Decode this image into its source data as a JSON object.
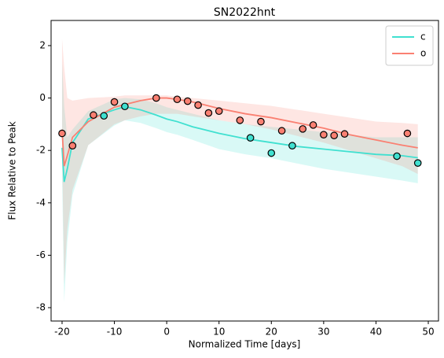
{
  "chart_data": {
    "type": "line",
    "title": "SN2022hnt",
    "xlabel": "Normalized Time [days]",
    "ylabel": "Flux Relative to Peak",
    "xlim": [
      -22.1,
      51.95
    ],
    "ylim": [
      -8.51,
      2.96
    ],
    "xticks": [
      -20,
      -10,
      0,
      10,
      20,
      30,
      40,
      50
    ],
    "yticks": [
      -8,
      -6,
      -4,
      -2,
      0,
      2
    ],
    "legend": "upper right",
    "series": [
      {
        "name": "c",
        "color": "#40e0d0",
        "x": [
          -20,
          -19.6,
          -19,
          -18,
          -15,
          -10,
          -8,
          -5,
          -2,
          0,
          2,
          5,
          10,
          15,
          20,
          25,
          30,
          35,
          40,
          45,
          48
        ],
        "values": [
          -1.9,
          -3.2,
          -2.7,
          -1.7,
          -0.8,
          -0.45,
          -0.33,
          -0.45,
          -0.65,
          -0.8,
          -0.9,
          -1.1,
          -1.35,
          -1.55,
          -1.7,
          -1.85,
          -1.95,
          -2.05,
          -2.15,
          -2.2,
          -2.28
        ],
        "upper": [
          1.4,
          -0.3,
          -1.5,
          -1.2,
          -0.5,
          -0.05,
          0.0,
          -0.05,
          -0.2,
          -0.35,
          -0.45,
          -0.6,
          -0.85,
          -1.0,
          -1.1,
          -1.2,
          -1.3,
          -1.4,
          -1.5,
          -1.5,
          -1.5
        ],
        "lower": [
          -3.0,
          -7.8,
          -5.5,
          -3.7,
          -1.8,
          -1.05,
          -0.85,
          -0.95,
          -1.15,
          -1.3,
          -1.4,
          -1.6,
          -1.95,
          -2.15,
          -2.3,
          -2.5,
          -2.7,
          -2.85,
          -3.0,
          -3.15,
          -3.25
        ],
        "obs_x": [
          -12,
          -8,
          16,
          20,
          24,
          44,
          48
        ],
        "obs_values": [
          -0.68,
          -0.32,
          -1.52,
          -2.1,
          -1.82,
          -2.22,
          -2.48
        ]
      },
      {
        "name": "o",
        "color": "#fa8072",
        "x": [
          -20,
          -19.6,
          -19,
          -18,
          -15,
          -10,
          -8,
          -5,
          -2,
          0,
          2,
          5,
          10,
          15,
          20,
          25,
          30,
          35,
          40,
          45,
          48
        ],
        "values": [
          -1.2,
          -2.6,
          -2.2,
          -1.5,
          -0.9,
          -0.35,
          -0.25,
          -0.1,
          0.0,
          0.0,
          -0.05,
          -0.15,
          -0.4,
          -0.6,
          -0.75,
          -0.95,
          -1.15,
          -1.4,
          -1.6,
          -1.8,
          -1.9
        ],
        "upper": [
          2.25,
          1.2,
          0.0,
          -0.1,
          0.0,
          0.05,
          0.1,
          0.1,
          0.1,
          0.1,
          0.05,
          0.0,
          -0.1,
          -0.2,
          -0.3,
          -0.45,
          -0.6,
          -0.75,
          -0.9,
          -0.95,
          -1.0
        ],
        "lower": [
          -2.0,
          -7.1,
          -5.0,
          -3.5,
          -1.8,
          -1.0,
          -0.85,
          -0.7,
          -0.6,
          -0.6,
          -0.6,
          -0.7,
          -0.85,
          -1.0,
          -1.2,
          -1.45,
          -1.7,
          -2.0,
          -2.3,
          -2.6,
          -2.9
        ],
        "obs_x": [
          -20,
          -18,
          -14,
          -10,
          -2,
          2,
          4,
          6,
          8,
          10,
          14,
          18,
          22,
          26,
          28,
          30,
          32,
          34,
          46
        ],
        "obs_values": [
          -1.35,
          -1.82,
          -0.65,
          -0.15,
          0.0,
          -0.05,
          -0.12,
          -0.27,
          -0.57,
          -0.5,
          -0.85,
          -0.9,
          -1.25,
          -1.18,
          -1.03,
          -1.4,
          -1.43,
          -1.37,
          -1.35
        ]
      }
    ]
  }
}
